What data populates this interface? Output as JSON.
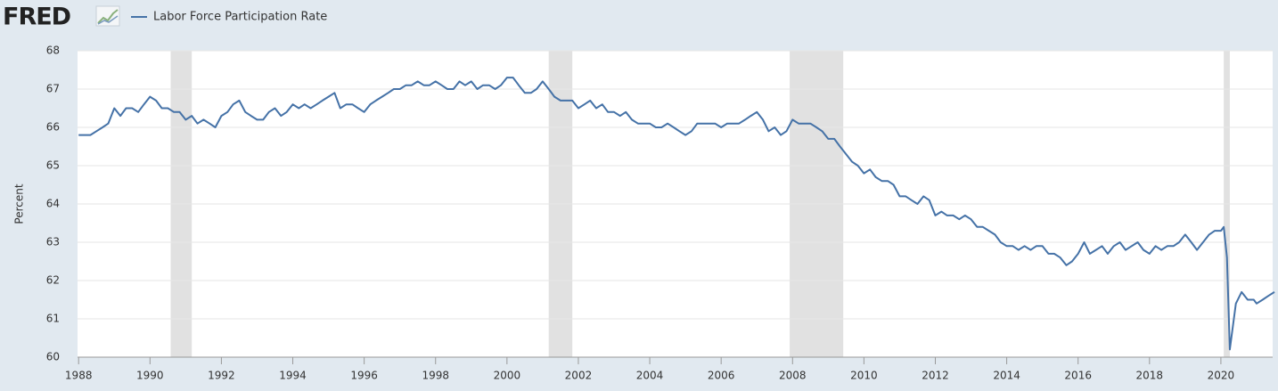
{
  "chart_data": {
    "type": "line",
    "logo": "FRED",
    "ylabel": "Percent",
    "grid": true,
    "xlim": [
      1987.97,
      2021.45
    ],
    "ylim": [
      60,
      68
    ],
    "xticks": [
      1988,
      1990,
      1992,
      1994,
      1996,
      1998,
      2000,
      2002,
      2004,
      2006,
      2008,
      2010,
      2012,
      2014,
      2016,
      2018,
      2020
    ],
    "yticks": [
      60,
      61,
      62,
      63,
      64,
      65,
      66,
      67,
      68
    ],
    "recession_color": "#e1e1e1",
    "recessions": [
      [
        1990.58,
        1991.17
      ],
      [
        2001.17,
        2001.83
      ],
      [
        2007.92,
        2009.42
      ],
      [
        2020.08,
        2020.25
      ]
    ],
    "x": [
      1988,
      1988.17,
      1988.33,
      1988.5,
      1988.67,
      1988.83,
      1989,
      1989.17,
      1989.33,
      1989.5,
      1989.67,
      1989.83,
      1990,
      1990.17,
      1990.33,
      1990.5,
      1990.67,
      1990.83,
      1991,
      1991.17,
      1991.33,
      1991.5,
      1991.67,
      1991.83,
      1992,
      1992.17,
      1992.33,
      1992.5,
      1992.67,
      1992.83,
      1993,
      1993.17,
      1993.33,
      1993.5,
      1993.67,
      1993.83,
      1994,
      1994.17,
      1994.33,
      1994.5,
      1994.67,
      1994.83,
      1995,
      1995.17,
      1995.33,
      1995.5,
      1995.67,
      1995.83,
      1996,
      1996.17,
      1996.33,
      1996.5,
      1996.67,
      1996.83,
      1997,
      1997.17,
      1997.33,
      1997.5,
      1997.67,
      1997.83,
      1998,
      1998.17,
      1998.33,
      1998.5,
      1998.67,
      1998.83,
      1999,
      1999.17,
      1999.33,
      1999.5,
      1999.67,
      1999.83,
      2000,
      2000.17,
      2000.33,
      2000.5,
      2000.67,
      2000.83,
      2001,
      2001.17,
      2001.33,
      2001.5,
      2001.67,
      2001.83,
      2002,
      2002.17,
      2002.33,
      2002.5,
      2002.67,
      2002.83,
      2003,
      2003.17,
      2003.33,
      2003.5,
      2003.67,
      2003.83,
      2004,
      2004.17,
      2004.33,
      2004.5,
      2004.67,
      2004.83,
      2005,
      2005.17,
      2005.33,
      2005.5,
      2005.67,
      2005.83,
      2006,
      2006.17,
      2006.33,
      2006.5,
      2006.67,
      2006.83,
      2007,
      2007.17,
      2007.33,
      2007.5,
      2007.67,
      2007.83,
      2008,
      2008.17,
      2008.33,
      2008.5,
      2008.67,
      2008.83,
      2009,
      2009.17,
      2009.33,
      2009.5,
      2009.67,
      2009.83,
      2010,
      2010.17,
      2010.33,
      2010.5,
      2010.67,
      2010.83,
      2011,
      2011.17,
      2011.33,
      2011.5,
      2011.67,
      2011.83,
      2012,
      2012.17,
      2012.33,
      2012.5,
      2012.67,
      2012.83,
      2013,
      2013.17,
      2013.33,
      2013.5,
      2013.67,
      2013.83,
      2014,
      2014.17,
      2014.33,
      2014.5,
      2014.67,
      2014.83,
      2015,
      2015.17,
      2015.33,
      2015.5,
      2015.67,
      2015.83,
      2016,
      2016.17,
      2016.33,
      2016.5,
      2016.67,
      2016.83,
      2017,
      2017.17,
      2017.33,
      2017.5,
      2017.67,
      2017.83,
      2018,
      2018.17,
      2018.33,
      2018.5,
      2018.67,
      2018.83,
      2019,
      2019.17,
      2019.33,
      2019.5,
      2019.67,
      2019.83,
      2020,
      2020.08,
      2020.17,
      2020.25,
      2020.42,
      2020.58,
      2020.75,
      2020.92,
      2021,
      2021.17,
      2021.33,
      2021.5
    ],
    "series": [
      {
        "name": "Labor Force Participation Rate",
        "color": "#4572a7",
        "values": [
          65.8,
          65.8,
          65.8,
          65.9,
          66.0,
          66.1,
          66.5,
          66.3,
          66.5,
          66.5,
          66.4,
          66.6,
          66.8,
          66.7,
          66.5,
          66.5,
          66.4,
          66.4,
          66.2,
          66.3,
          66.1,
          66.2,
          66.1,
          66.0,
          66.3,
          66.4,
          66.6,
          66.7,
          66.4,
          66.3,
          66.2,
          66.2,
          66.4,
          66.5,
          66.3,
          66.4,
          66.6,
          66.5,
          66.6,
          66.5,
          66.6,
          66.7,
          66.8,
          66.9,
          66.5,
          66.6,
          66.6,
          66.5,
          66.4,
          66.6,
          66.7,
          66.8,
          66.9,
          67.0,
          67.0,
          67.1,
          67.1,
          67.2,
          67.1,
          67.1,
          67.2,
          67.1,
          67.0,
          67.0,
          67.2,
          67.1,
          67.2,
          67.0,
          67.1,
          67.1,
          67.0,
          67.1,
          67.3,
          67.3,
          67.1,
          66.9,
          66.9,
          67.0,
          67.2,
          67.0,
          66.8,
          66.7,
          66.7,
          66.7,
          66.5,
          66.6,
          66.7,
          66.5,
          66.6,
          66.4,
          66.4,
          66.3,
          66.4,
          66.2,
          66.1,
          66.1,
          66.1,
          66.0,
          66.0,
          66.1,
          66.0,
          65.9,
          65.8,
          65.9,
          66.1,
          66.1,
          66.1,
          66.1,
          66.0,
          66.1,
          66.1,
          66.1,
          66.2,
          66.3,
          66.4,
          66.2,
          65.9,
          66.0,
          65.8,
          65.9,
          66.2,
          66.1,
          66.1,
          66.1,
          66.0,
          65.9,
          65.7,
          65.7,
          65.5,
          65.3,
          65.1,
          65.0,
          64.8,
          64.9,
          64.7,
          64.6,
          64.6,
          64.5,
          64.2,
          64.2,
          64.1,
          64.0,
          64.2,
          64.1,
          63.7,
          63.8,
          63.7,
          63.7,
          63.6,
          63.7,
          63.6,
          63.4,
          63.4,
          63.3,
          63.2,
          63.0,
          62.9,
          62.9,
          62.8,
          62.9,
          62.8,
          62.9,
          62.9,
          62.7,
          62.7,
          62.6,
          62.4,
          62.5,
          62.7,
          63.0,
          62.7,
          62.8,
          62.9,
          62.7,
          62.9,
          63.0,
          62.8,
          62.9,
          63.0,
          62.8,
          62.7,
          62.9,
          62.8,
          62.9,
          62.9,
          63.0,
          63.2,
          63.0,
          62.8,
          63.0,
          63.2,
          63.3,
          63.3,
          63.4,
          62.6,
          60.2,
          61.4,
          61.7,
          61.5,
          61.5,
          61.4,
          61.5,
          61.6,
          61.7
        ]
      }
    ]
  }
}
